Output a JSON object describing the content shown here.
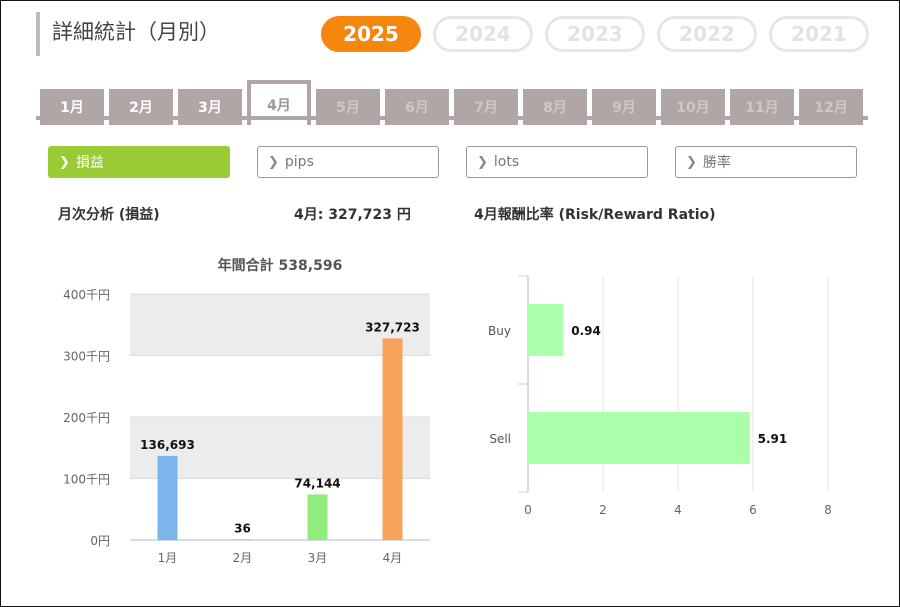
{
  "header": {
    "title": "詳細統計（月別）",
    "years": [
      "2025",
      "2024",
      "2023",
      "2022",
      "2021"
    ],
    "active_year": "2025"
  },
  "months": [
    "1月",
    "2月",
    "3月",
    "4月",
    "5月",
    "6月",
    "7月",
    "8月",
    "9月",
    "10月",
    "11月",
    "12月"
  ],
  "active_month": "4月",
  "metric_tabs": [
    "損益",
    "pips",
    "lots",
    "勝率"
  ],
  "active_metric": "損益",
  "left_panel": {
    "title": "月次分析 (損益)",
    "month_label": "4月:",
    "month_value": "327,723 円"
  },
  "right_panel": {
    "title": "4月報酬比率 (Risk/Reward Ratio)"
  },
  "colors": {
    "accent_orange": "#f5870f",
    "accent_green": "#9acb34",
    "tab_gray": "#b0a6a6"
  },
  "chart_data": [
    {
      "type": "bar",
      "title": "年間合計 538,596",
      "categories": [
        "1月",
        "2月",
        "3月",
        "4月"
      ],
      "values": [
        136693,
        36,
        74144,
        327723
      ],
      "data_labels": [
        "136,693",
        "36",
        "74,144",
        "327,723"
      ],
      "bar_colors": [
        "#7cb5ec",
        "#7cb5ec",
        "#90ed7d",
        "#f7a35c"
      ],
      "yticks": [
        "0円",
        "100千円",
        "200千円",
        "300千円",
        "400千円"
      ],
      "ytick_values": [
        0,
        100000,
        200000,
        300000,
        400000
      ],
      "ylim": [
        0,
        400000
      ],
      "banded_grid": true
    },
    {
      "type": "bar",
      "orientation": "horizontal",
      "categories": [
        "Buy",
        "Sell"
      ],
      "values": [
        0.94,
        5.91
      ],
      "data_labels": [
        "0.94",
        "5.91"
      ],
      "bar_color": "#aaffaa",
      "xticks": [
        "0",
        "2",
        "4",
        "6",
        "8"
      ],
      "xtick_values": [
        0,
        2,
        4,
        6,
        8
      ],
      "xlim": [
        0,
        8
      ],
      "grid": true
    }
  ]
}
